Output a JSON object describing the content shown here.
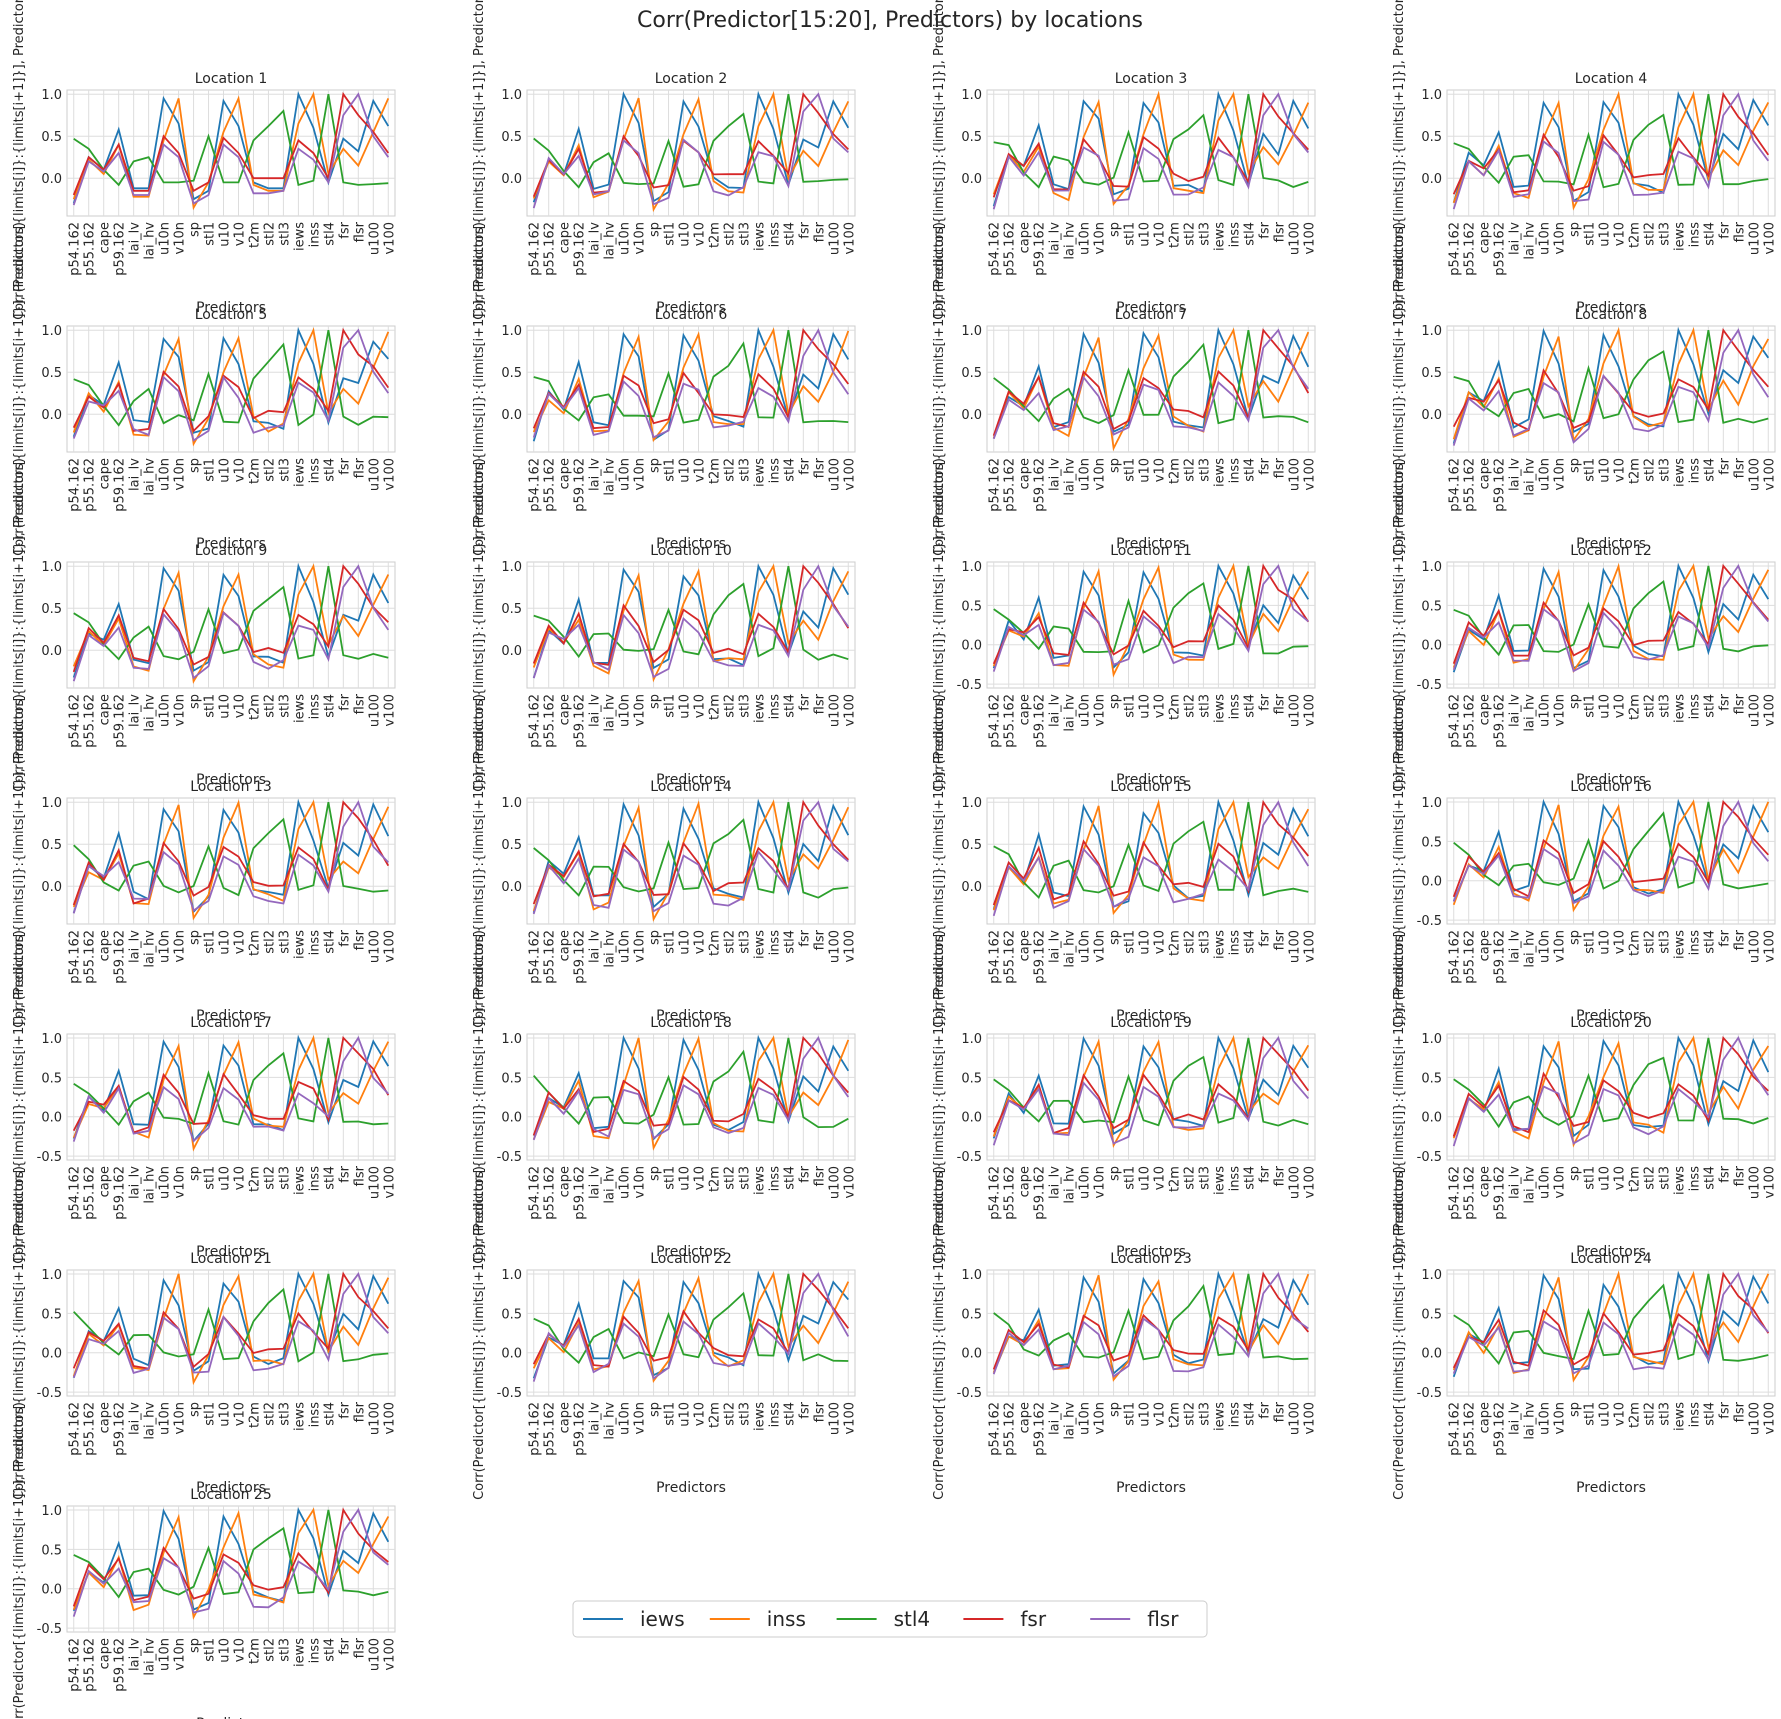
{
  "figure": {
    "title": "Corr(Predictor[15:20], Predictors) by locations",
    "subplot_title_prefix": "Location ",
    "xlabel": "Predictors",
    "ylabel": "Corr(Predictor[{limits[i]}:{limits[i+1]}], Predictors)"
  },
  "legend": {
    "placement": "bottom-center",
    "entries": [
      {
        "name": "iews",
        "color": "#1f77b4"
      },
      {
        "name": "inss",
        "color": "#ff7f0e"
      },
      {
        "name": "stl4",
        "color": "#2ca02c"
      },
      {
        "name": "fsr",
        "color": "#d62728"
      },
      {
        "name": "flsr",
        "color": "#9467bd"
      }
    ]
  },
  "chart_data": {
    "type": "line",
    "grid": true,
    "locations": [
      1,
      2,
      3,
      4,
      5,
      6,
      7,
      8,
      9,
      10,
      11,
      12,
      13,
      14,
      15,
      16,
      17,
      18,
      19,
      20,
      21,
      22,
      23,
      24,
      25
    ],
    "x": [
      "p54.162",
      "p55.162",
      "cape",
      "p59.162",
      "lai_lv",
      "lai_hv",
      "u10n",
      "v10n",
      "sp",
      "stl1",
      "u10",
      "v10",
      "t2m",
      "stl2",
      "stl3",
      "iews",
      "inss",
      "stl4",
      "fsr",
      "flsr",
      "u100",
      "v100"
    ],
    "yticks_default": [
      0.0,
      0.5,
      1.0
    ],
    "yticks_extended": [
      -0.5,
      0.0,
      0.5,
      1.0
    ],
    "extended_ticks_locations": [
      11,
      12,
      16,
      17,
      18,
      19,
      20,
      21,
      22,
      23,
      24,
      25
    ],
    "ylim_default": [
      -0.45,
      1.05
    ],
    "ylim_extended": [
      -0.55,
      1.05
    ],
    "series": [
      {
        "name": "iews",
        "values": [
          -0.3,
          0.25,
          0.1,
          0.58,
          -0.12,
          -0.12,
          0.95,
          0.65,
          -0.25,
          -0.15,
          0.92,
          0.62,
          -0.05,
          -0.12,
          -0.12,
          1.0,
          0.6,
          -0.05,
          0.47,
          0.32,
          0.92,
          0.62
        ]
      },
      {
        "name": "inss",
        "values": [
          -0.25,
          0.22,
          0.05,
          0.4,
          -0.22,
          -0.22,
          0.45,
          0.95,
          -0.35,
          -0.05,
          0.55,
          0.95,
          -0.08,
          -0.15,
          -0.15,
          0.65,
          1.0,
          0.05,
          0.35,
          0.15,
          0.55,
          0.95
        ]
      },
      {
        "name": "stl4",
        "values": [
          0.47,
          0.35,
          0.1,
          -0.08,
          0.2,
          0.25,
          -0.05,
          -0.05,
          -0.03,
          0.5,
          -0.05,
          -0.05,
          0.45,
          0.62,
          0.8,
          -0.08,
          -0.03,
          1.0,
          -0.05,
          -0.08,
          -0.07,
          -0.06
        ]
      },
      {
        "name": "fsr",
        "values": [
          -0.2,
          0.25,
          0.1,
          0.4,
          -0.15,
          -0.15,
          0.5,
          0.3,
          -0.15,
          -0.05,
          0.48,
          0.3,
          0.0,
          0.0,
          0.0,
          0.45,
          0.3,
          0.0,
          1.0,
          0.75,
          0.55,
          0.3
        ]
      },
      {
        "name": "flsr",
        "values": [
          -0.32,
          0.2,
          0.08,
          0.3,
          -0.2,
          -0.2,
          0.4,
          0.25,
          -0.3,
          -0.2,
          0.4,
          0.25,
          -0.18,
          -0.18,
          -0.15,
          0.35,
          0.22,
          -0.05,
          0.75,
          1.0,
          0.5,
          0.25
        ]
      }
    ]
  }
}
